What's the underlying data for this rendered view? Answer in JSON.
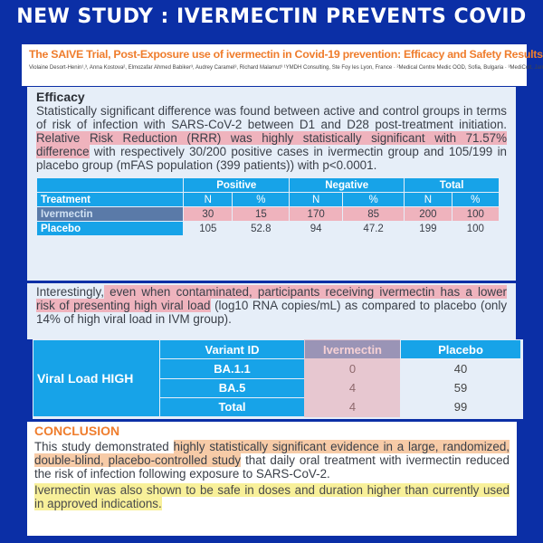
{
  "banner_title": "NEW STUDY : IVERMECTIN PREVENTS COVID",
  "header": {
    "title": "The SAIVE Trial, Post-Exposure use of ivermectin in Covid-19 prevention: Efficacy and Safety Results",
    "authors": "Violaine Desort-Henin¹,³, Anna Kostova², Elmozafar Ahmed Babiker³, Audrey Caramel³, Richard Malamut³ ¹YMDH Consulting, Ste Foy les Lyon, France · ²Medical Centre Medic OOD, Sofia, Bulgaria · ³MediColt, Jansz, Finland"
  },
  "efficacy": {
    "heading": "Efficacy",
    "p1": "Statistically significant difference was found between active and control groups in terms of risk of infection with SARS-CoV-2 between D1 and D28 post-treatment initiation. ",
    "p1_hl": "Relative Risk Reduction (RRR) was highly statistically significant with 71.57% difference",
    "p1_end": " with respectively 30/200 positive cases in ivermectin group and 105/199 in placebo group (mFAS population (399 patients)) with p<0.0001.",
    "table": {
      "groups": [
        "Positive",
        "Negative",
        "Total"
      ],
      "treatment_header": "Treatment",
      "sub": [
        "N",
        "%",
        "N",
        "%",
        "N",
        "%"
      ],
      "rows": [
        {
          "name": "Ivermectin",
          "values": [
            "30",
            "15",
            "170",
            "85",
            "200",
            "100"
          ]
        },
        {
          "name": "Placebo",
          "values": [
            "105",
            "52.8",
            "94",
            "47.2",
            "199",
            "100"
          ]
        }
      ]
    }
  },
  "viral": {
    "p_start": "Interestingly,",
    "p_hl": " even when contaminated, participants receiving ivermectin has a lower risk of presenting high viral load",
    "p_end": " (log10 RNA copies/mL) as compared to placebo (only 14% of high viral load in IVM group).",
    "table": {
      "row_label": "Viral Load HIGH",
      "headers": [
        "Variant ID",
        "Ivermectin",
        "Placebo"
      ],
      "rows": [
        {
          "variant": "BA.1.1",
          "ivermectin": "0",
          "placebo": "40"
        },
        {
          "variant": "BA.5",
          "ivermectin": "4",
          "placebo": "59"
        },
        {
          "variant": "Total",
          "ivermectin": "4",
          "placebo": "99"
        }
      ]
    }
  },
  "conclusion": {
    "heading": "CONCLUSION",
    "p1_start": "This study demonstrated ",
    "p1_hl": "highly statistically significant evidence in a large, randomized, double-blind, placebo-controlled study",
    "p1_end": " that daily oral treatment with ivermectin reduced the risk of infection following exposure to SARS-CoV-2.",
    "p2": "Ivermectin was also shown to be safe in doses and duration higher than currently used in approved indications."
  },
  "colors": {
    "background": "#0b2fa6",
    "accent_orange": "#ef7d2d",
    "table_blue": "#17a3e8",
    "highlight_pink": "#efb3bd",
    "highlight_yellow": "#f8f09a"
  }
}
